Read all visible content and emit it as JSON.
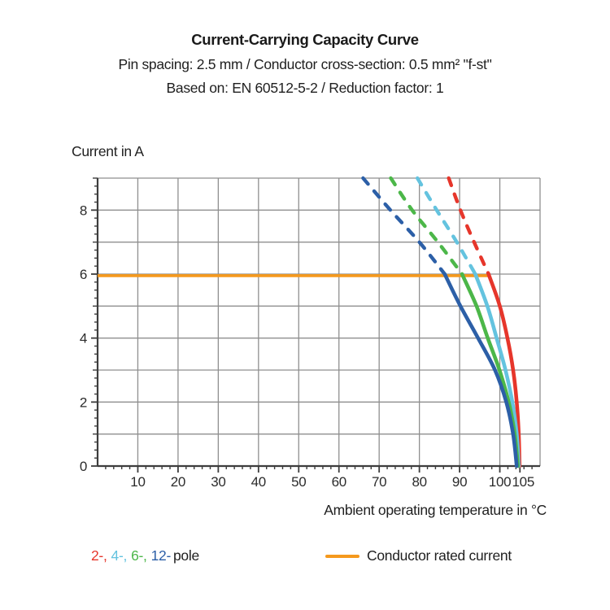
{
  "chart_data": {
    "type": "line",
    "title": "Current-Carrying Capacity Curve",
    "subtitle": "Pin spacing: 2.5 mm / Conductor cross-section: 0.5 mm² \"f-st\"",
    "basis": "Based on: EN 60512-5-2 / Reduction factor: 1",
    "xlabel": "Ambient operating temperature in °C",
    "ylabel": "Current in A",
    "xlim": [
      0,
      110
    ],
    "ylim": [
      0,
      9
    ],
    "grid": true,
    "legend_position": "bottom",
    "grid_color": "#8f8f8f",
    "axis_color": "#3d3d3d",
    "text_color": "#2b2b2b",
    "x_gridlines": [
      10,
      20,
      30,
      40,
      50,
      60,
      70,
      80,
      90,
      100
    ],
    "y_gridlines": [
      1,
      2,
      3,
      4,
      5,
      6,
      7,
      8
    ],
    "x_minor_step": 2,
    "y_minor_step": 0.25,
    "x_ticks": [
      {
        "v": 10,
        "label": "10"
      },
      {
        "v": 20,
        "label": "20"
      },
      {
        "v": 30,
        "label": "30"
      },
      {
        "v": 40,
        "label": "40"
      },
      {
        "v": 50,
        "label": "50"
      },
      {
        "v": 60,
        "label": "60"
      },
      {
        "v": 70,
        "label": "70"
      },
      {
        "v": 80,
        "label": "80"
      },
      {
        "v": 90,
        "label": "90"
      },
      {
        "v": 100,
        "label": "100"
      },
      {
        "v": 105,
        "label": "105"
      }
    ],
    "y_ticks": [
      {
        "v": 0,
        "label": "0"
      },
      {
        "v": 2,
        "label": "2"
      },
      {
        "v": 4,
        "label": "4"
      },
      {
        "v": 6,
        "label": "6"
      },
      {
        "v": 8,
        "label": "8"
      }
    ],
    "rated_current": {
      "value": 5.95,
      "x_start": 0,
      "x_end": 97.2,
      "label": "Conductor rated current",
      "color": "#f5991d"
    },
    "series": [
      {
        "name": "2-pole",
        "color": "#e6362b",
        "dashed": [
          [
            87.3,
            9
          ],
          [
            90.2,
            8
          ],
          [
            93.6,
            7
          ],
          [
            97.2,
            6
          ]
        ],
        "solid": [
          [
            97.2,
            6
          ],
          [
            100.0,
            5
          ],
          [
            101.9,
            4
          ],
          [
            103.3,
            3
          ],
          [
            104.2,
            2
          ],
          [
            104.7,
            1
          ],
          [
            104.9,
            0
          ]
        ]
      },
      {
        "name": "4-pole",
        "color": "#64c3df",
        "dashed": [
          [
            79.5,
            9
          ],
          [
            84.3,
            8
          ],
          [
            89.3,
            7
          ],
          [
            93.9,
            6
          ]
        ],
        "solid": [
          [
            93.9,
            6
          ],
          [
            96.9,
            5
          ],
          [
            99.2,
            4
          ],
          [
            101.4,
            3
          ],
          [
            103.1,
            2
          ],
          [
            104.2,
            1
          ],
          [
            104.7,
            0
          ]
        ]
      },
      {
        "name": "6-pole",
        "color": "#4cb749",
        "dashed": [
          [
            72.9,
            9
          ],
          [
            78.2,
            8
          ],
          [
            84.6,
            7
          ],
          [
            90.6,
            6
          ]
        ],
        "solid": [
          [
            90.6,
            6
          ],
          [
            94.2,
            5
          ],
          [
            97.0,
            4
          ],
          [
            99.9,
            3
          ],
          [
            102.2,
            2
          ],
          [
            103.7,
            1
          ],
          [
            104.5,
            0
          ]
        ]
      },
      {
        "name": "12-pole",
        "color": "#2c5fa7",
        "dashed": [
          [
            66.0,
            9
          ],
          [
            72.8,
            8
          ],
          [
            80.0,
            7
          ],
          [
            86.3,
            6
          ]
        ],
        "solid": [
          [
            86.3,
            6
          ],
          [
            90.2,
            5
          ],
          [
            94.6,
            4
          ],
          [
            98.8,
            3
          ],
          [
            101.6,
            2
          ],
          [
            103.3,
            1
          ],
          [
            104.2,
            0
          ]
        ]
      }
    ]
  },
  "legend": {
    "pole_items": [
      {
        "label": "2-,",
        "color": "#e6362b"
      },
      {
        "label": "4-,",
        "color": "#64c3df"
      },
      {
        "label": "6-,",
        "color": "#4cb749"
      },
      {
        "label": "12-",
        "color": "#2c5fa7"
      }
    ],
    "pole_suffix": "pole",
    "rated_label": "Conductor rated current"
  }
}
